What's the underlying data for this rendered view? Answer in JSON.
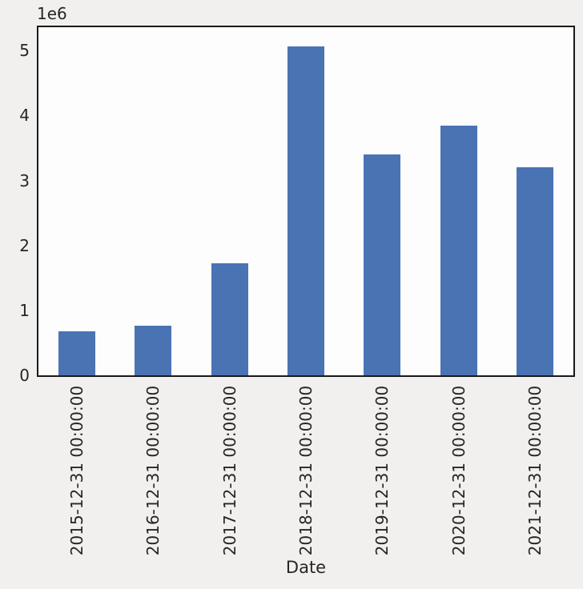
{
  "figure": {
    "background_color": "#f1f0ee",
    "axes_background_color": "#fdfdfd",
    "spine_color": "#1a1a1a",
    "text_color": "#262626"
  },
  "chart_data": {
    "type": "bar",
    "title": "",
    "xlabel": "Date",
    "ylabel": "",
    "offset_text": "1e6",
    "categories": [
      "2015-12-31 00:00:00",
      "2016-12-31 00:00:00",
      "2017-12-31 00:00:00",
      "2018-12-31 00:00:00",
      "2019-12-31 00:00:00",
      "2020-12-31 00:00:00",
      "2021-12-31 00:00:00"
    ],
    "values": [
      680000,
      760000,
      1720000,
      5060000,
      3400000,
      3840000,
      3200000
    ],
    "bar_color": "#4a73b4",
    "ylim": [
      0,
      5360000
    ],
    "yticks": [
      0,
      1000000,
      2000000,
      3000000,
      4000000,
      5000000
    ],
    "ytick_labels": [
      "0",
      "1",
      "2",
      "3",
      "4",
      "5"
    ],
    "grid": false,
    "legend": null,
    "x_tick_rotation_deg": 90
  }
}
